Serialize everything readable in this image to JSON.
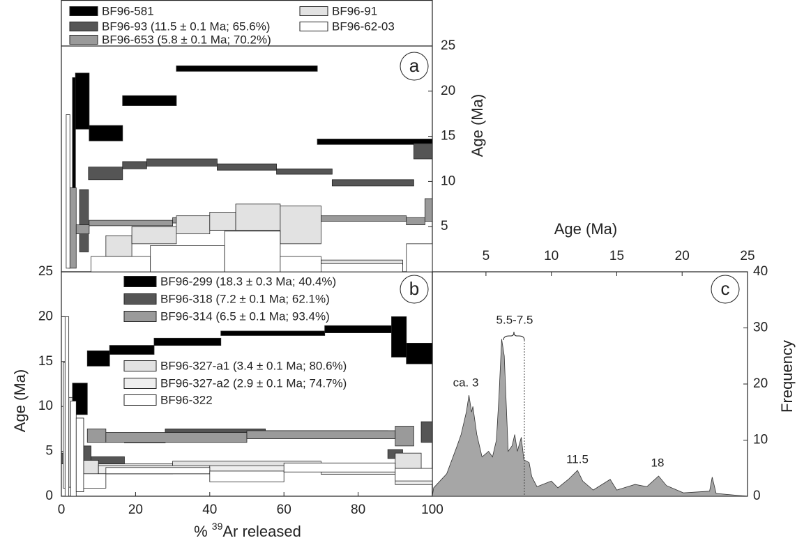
{
  "chart_data": [
    {
      "type": "age-spectrum",
      "label": "a",
      "ylim": [
        0,
        25
      ],
      "yticks": [
        5,
        10,
        15,
        20,
        25
      ],
      "y_label": "Age (Ma)",
      "xlim": [
        0,
        100
      ],
      "series": [
        {
          "name": "BF96-581",
          "color": "#000000",
          "x_from": [
            3,
            3.8,
            7.5,
            16.5,
            31,
            69
          ],
          "x_to": [
            3.8,
            7.5,
            16.5,
            31,
            69,
            100
          ],
          "values": [
            12.5,
            18.9,
            15.35,
            18.95,
            22.5,
            14.4
          ],
          "errors": [
            9,
            3.1,
            0.85,
            0.55,
            0.3,
            0.3
          ]
        },
        {
          "name": "BF96-93 (11.5 ± 0.1 Ma; 65.6%)",
          "color": "#555555",
          "x_from": [
            4.9,
            7.3,
            16.5,
            23,
            42,
            58,
            73,
            95
          ],
          "x_to": [
            7.3,
            16.5,
            23,
            42,
            58,
            73,
            95,
            100
          ],
          "values": [
            5.65,
            10.9,
            11.8,
            12.1,
            11.6,
            11.1,
            9.85,
            13.35
          ],
          "errors": [
            3.45,
            0.7,
            0.4,
            0.4,
            0.35,
            0.3,
            0.35,
            0.85
          ]
        },
        {
          "name": "BF96-653 (5.8 ± 0.1 Ma; 70.2%)",
          "color": "#9a9a9a",
          "x_from": [
            2,
            4,
            7.5,
            30,
            60,
            93,
            98
          ],
          "x_to": [
            4,
            7.5,
            30,
            60,
            93,
            98,
            100
          ],
          "values": [
            4.85,
            4.7,
            5.4,
            5.7,
            5.9,
            5.6,
            6.85
          ],
          "errors": [
            4.45,
            0.5,
            0.3,
            0.3,
            0.3,
            0.4,
            1.25
          ]
        },
        {
          "name": "BF96-91",
          "color": "#e2e2e2",
          "x_from": [
            12,
            19,
            31,
            40,
            47,
            59,
            70
          ],
          "x_to": [
            19,
            31,
            40,
            47,
            59,
            70,
            92
          ],
          "values": [
            2.85,
            4.05,
            5.2,
            5.6,
            6.05,
            5.2,
            1.05
          ],
          "errors": [
            1.15,
            0.95,
            1.0,
            1.0,
            1.45,
            2.1,
            0.25
          ]
        },
        {
          "name": "BF96-62-03",
          "color": "#ffffff",
          "x_from": [
            1.3,
            8,
            24,
            44,
            59,
            70,
            93
          ],
          "x_to": [
            2.3,
            24,
            44,
            59,
            70,
            92,
            100
          ],
          "values": [
            8.9,
            0.85,
            1.45,
            2.25,
            0.85,
            0.45,
            1.55
          ],
          "errors": [
            8.5,
            0.85,
            1.45,
            2.25,
            0.85,
            0.45,
            1.55
          ]
        }
      ]
    },
    {
      "type": "age-spectrum",
      "label": "b",
      "ylim": [
        0,
        25
      ],
      "yticks": [
        0,
        5,
        10,
        15,
        20,
        25
      ],
      "y_label": "Age (Ma)",
      "xlim": [
        0,
        100
      ],
      "xticks": [
        0,
        20,
        40,
        60,
        80,
        100
      ],
      "x_label": {
        "prefix": "% ",
        "superscript": "39",
        "suffix": "Ar released"
      },
      "series": [
        {
          "name": "BF96-299 (18.3 ± 0.3 Ma; 40.4%)",
          "color": "#000000",
          "x_from": [
            3,
            7,
            13,
            25,
            43,
            71,
            89,
            93
          ],
          "x_to": [
            7,
            13,
            25,
            43,
            71,
            89,
            93,
            100
          ],
          "values": [
            10.85,
            15.35,
            16.3,
            17.2,
            18.15,
            18.6,
            17.75,
            15.9
          ],
          "errors": [
            1.75,
            0.85,
            0.5,
            0.4,
            0.25,
            0.4,
            2.25,
            1.15
          ]
        },
        {
          "name": "BF96-318 (7.2 ± 0.1 Ma; 62.1%)",
          "color": "#555555",
          "x_from": [
            0,
            5,
            8,
            17,
            28,
            55,
            88,
            97
          ],
          "x_to": [
            1,
            8,
            17,
            28,
            55,
            88,
            92,
            100
          ],
          "values": [
            4.2,
            4.5,
            3.95,
            6.35,
            7.1,
            6.9,
            4.7,
            7.15
          ],
          "errors": [
            0.6,
            1.1,
            0.45,
            0.4,
            0.4,
            0.4,
            0.5,
            1.15
          ]
        },
        {
          "name": "BF96-314 (6.5 ± 0.1 Ma; 93.4%)",
          "color": "#9a9a9a",
          "x_from": [
            7,
            12,
            50,
            90
          ],
          "x_to": [
            12,
            50,
            90,
            95
          ],
          "values": [
            6.75,
            6.55,
            6.85,
            6.7
          ],
          "errors": [
            0.75,
            0.55,
            0.45,
            1.1
          ]
        },
        {
          "name": "BF96-327-a1 (3.4 ± 0.1 Ma; 80.6%)",
          "color": "#e2e2e2",
          "x_from": [
            1,
            5,
            10,
            30,
            70,
            90
          ],
          "x_to": [
            3,
            10,
            30,
            70,
            90,
            97
          ],
          "values": [
            6.0,
            2.85,
            3.05,
            3.5,
            3.35,
            3.65
          ],
          "errors": [
            5.0,
            1.15,
            0.55,
            0.4,
            0.35,
            1.15
          ]
        },
        {
          "name": "BF96-327-a2 (2.9 ± 0.1 Ma; 74.7%)",
          "color": "#eeeeee",
          "x_from": [
            0.5,
            3,
            10,
            40,
            70,
            90
          ],
          "x_to": [
            2,
            6,
            40,
            70,
            90,
            100
          ],
          "values": [
            7.9,
            5.2,
            2.95,
            3.1,
            2.85,
            1.8
          ],
          "errors": [
            7.0,
            3.5,
            0.45,
            0.3,
            0.4,
            0.5
          ]
        },
        {
          "name": "BF96-322",
          "color": "#ffffff",
          "x_from": [
            1,
            2.5,
            4,
            6,
            12,
            40,
            60,
            90
          ],
          "x_to": [
            2,
            4,
            6,
            12,
            40,
            60,
            90,
            100
          ],
          "values": [
            10,
            5.3,
            4.6,
            1.7,
            2.85,
            2.2,
            3.2,
            2.4
          ],
          "errors": [
            10,
            5.3,
            4.1,
            0.8,
            0.35,
            0.6,
            0.5,
            0.7
          ]
        }
      ]
    },
    {
      "type": "area",
      "label": "c",
      "color": "#a6a6a6",
      "x_label": "Age (Ma)",
      "y_label": "Frequency",
      "xlim": [
        0.9,
        25
      ],
      "xticks": [
        5,
        10,
        15,
        20,
        25
      ],
      "ylim": [
        0,
        40
      ],
      "yticks": [
        0,
        10,
        20,
        30,
        40
      ],
      "x": [
        0.9,
        1.0,
        2.0,
        2.8,
        3.1,
        3.5,
        3.7,
        3.9,
        4.0,
        4.3,
        4.7,
        5.2,
        5.5,
        5.8,
        6.0,
        6.2,
        6.4,
        6.7,
        7.0,
        7.2,
        7.4,
        7.7,
        7.9,
        8.3,
        8.5,
        8.9,
        10.0,
        10.5,
        11.3,
        12.0,
        12.4,
        13.2,
        14.5,
        15.0,
        16.4,
        17.3,
        18.2,
        18.8,
        20.1,
        22.1,
        22.3,
        22.6,
        25.0
      ],
      "values": [
        0,
        1.5,
        4,
        9,
        11,
        15,
        18,
        15,
        16,
        11,
        7,
        8,
        7,
        10,
        18,
        28,
        25,
        8,
        9,
        11,
        8,
        10.5,
        6.5,
        6,
        3.5,
        1.7,
        2.7,
        1.5,
        3,
        4.6,
        2.7,
        1.1,
        3,
        1.1,
        2.1,
        1.7,
        3.6,
        1.9,
        0.6,
        0.9,
        3.4,
        0.5,
        0
      ],
      "annotations": [
        "ca. 3",
        "5.5-7.5",
        "11.5",
        "18"
      ]
    }
  ]
}
